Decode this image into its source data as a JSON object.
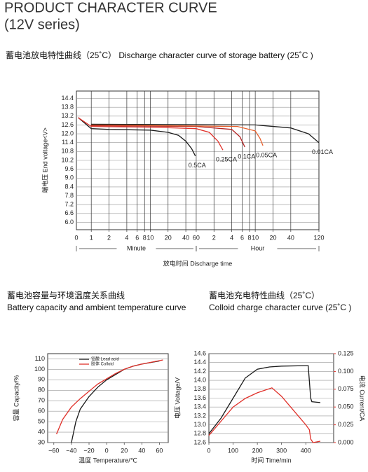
{
  "header": {
    "title": "PRODUCT CHARACTER CURVE",
    "subtitle": "(12V series)"
  },
  "chart_data": [
    {
      "type": "line",
      "title": "蓄电池放电特性曲线（25˚C）  Discharge character curve of storage battery (25˚C )",
      "x_label": "放电时间 Discharge time",
      "y_label": "端电压 End voltage<V>",
      "x_scale": "log",
      "origin_label": "0",
      "x_units": [
        "Minute",
        "Hour"
      ],
      "grid": "both",
      "legend": "inline",
      "xlim": [
        0.56,
        7200
      ],
      "xticks": [
        1,
        2,
        4,
        6,
        8,
        10,
        20,
        40,
        60,
        {
          "value": 120,
          "label": "2"
        },
        {
          "value": 240,
          "label": "4"
        },
        {
          "value": 360,
          "label": "6"
        },
        {
          "value": 480,
          "label": "8"
        },
        {
          "value": 600,
          "label": "10"
        },
        {
          "value": 1200,
          "label": "20"
        },
        {
          "value": 2400,
          "label": "40"
        },
        {
          "value": 7200,
          "label": "120"
        }
      ],
      "ylim": [
        5.5,
        14.9
      ],
      "yticks": [
        {
          "value": 6,
          "label": "6.0"
        },
        6.6,
        7.2,
        7.8,
        8.4,
        {
          "value": 9,
          "label": "9.0"
        },
        9.6,
        10.2,
        10.8,
        11.4,
        {
          "value": 12,
          "label": "12.0"
        },
        12.6,
        13.2,
        13.8,
        14.4
      ],
      "series": [
        {
          "name": "0.5CA",
          "color": "#1a1a1a",
          "x": [
            0.6,
            1,
            2,
            10,
            20,
            30,
            40,
            50,
            58
          ],
          "values": [
            13.1,
            12.35,
            12.3,
            12.25,
            12.1,
            11.9,
            11.5,
            11.0,
            10.5
          ]
        },
        {
          "name": "0.25CA",
          "color": "#e0312a",
          "x": [
            0.6,
            1,
            10,
            60,
            100,
            140,
            170
          ],
          "values": [
            13.1,
            12.5,
            12.45,
            12.35,
            12.1,
            11.5,
            10.9
          ]
        },
        {
          "name": "0.1CA",
          "color": "#b22222",
          "x": [
            1,
            60,
            240,
            330,
            400
          ],
          "values": [
            12.55,
            12.5,
            12.3,
            11.8,
            11.1
          ]
        },
        {
          "name": "0.05CA",
          "color": "#e8602c",
          "x": [
            1,
            300,
            600,
            720,
            810
          ],
          "values": [
            12.6,
            12.5,
            12.2,
            11.7,
            11.2
          ]
        },
        {
          "name": "0.01CA",
          "color": "#222222",
          "x": [
            1,
            600,
            2400,
            4800,
            7200
          ],
          "values": [
            12.65,
            12.6,
            12.4,
            12.0,
            11.4
          ]
        }
      ]
    },
    {
      "type": "line",
      "title": "蓄电池容量与环境温度关系曲线",
      "subtitle": "Battery capacity and ambient temperature curve",
      "x_label": "温度 Temperature/℃",
      "y_label": "容量 Capacity/%",
      "grid": "y",
      "legend": "top",
      "xlim": [
        -67,
        70
      ],
      "xticks": [
        {
          "value": -60,
          "label": "−60"
        },
        {
          "value": -40,
          "label": "−40"
        },
        {
          "value": -20,
          "label": "−20"
        },
        0,
        20,
        40,
        60
      ],
      "ylim": [
        30,
        115
      ],
      "yticks": [
        30,
        40,
        50,
        60,
        70,
        80,
        90,
        100,
        110
      ],
      "series": [
        {
          "name": "铅酸 Lead acid",
          "color": "#1a1a1a",
          "x": [
            -40,
            -35,
            -30,
            -20,
            -10,
            0,
            10,
            20,
            30,
            40,
            60
          ],
          "values": [
            30,
            50,
            62,
            74,
            83,
            90,
            95,
            100,
            103,
            105,
            108
          ]
        },
        {
          "name": "胶体 Colloid",
          "color": "#e0312a",
          "x": [
            -57,
            -50,
            -40,
            -30,
            -20,
            -10,
            0,
            10,
            20,
            30,
            40,
            64
          ],
          "values": [
            38,
            52,
            64,
            72,
            79,
            86,
            91,
            96,
            100,
            103,
            105,
            109
          ]
        }
      ]
    },
    {
      "type": "line",
      "title": "蓄电池充电特性曲线（25˚C）",
      "subtitle": "Colloid charge character curve (25˚C )",
      "x_label": "时间 Time/min",
      "y_label": "电压 Voltage/V",
      "y2_label": "电流 Current/CA",
      "y2_color": "#e0312a",
      "grid": "y",
      "xlim": [
        0,
        515
      ],
      "xticks": [
        0,
        100,
        200,
        300,
        400
      ],
      "ylim": [
        12.6,
        14.6
      ],
      "yticks": [
        12.6,
        12.8,
        {
          "value": 13,
          "label": "13.0"
        },
        13.2,
        13.4,
        13.6,
        13.8,
        {
          "value": 14,
          "label": "14.0"
        },
        14.2,
        14.4,
        14.6
      ],
      "y2lim": [
        0,
        0.125
      ],
      "y2ticks": [
        {
          "value": 0,
          "label": "0.000"
        },
        0.025,
        {
          "value": 0.05,
          "label": "0.050"
        },
        0.075,
        {
          "value": 0.1,
          "label": "0.100"
        },
        0.125
      ],
      "series": [
        {
          "color": "#1a1a1a",
          "x": [
            0,
            50,
            100,
            150,
            200,
            250,
            300,
            400,
            410,
            420,
            425,
            460
          ],
          "values": [
            12.8,
            13.15,
            13.6,
            14.05,
            14.25,
            14.3,
            14.32,
            14.33,
            14.33,
            13.6,
            13.52,
            13.5
          ]
        },
        {
          "color": "#e0312a",
          "axis": "y2",
          "x": [
            0,
            50,
            100,
            150,
            200,
            260,
            300,
            350,
            400,
            415,
            420,
            430,
            460
          ],
          "values": [
            0.01,
            0.03,
            0.05,
            0.062,
            0.07,
            0.077,
            0.065,
            0.045,
            0.025,
            0.018,
            0.005,
            0,
            0.002
          ]
        }
      ]
    }
  ]
}
